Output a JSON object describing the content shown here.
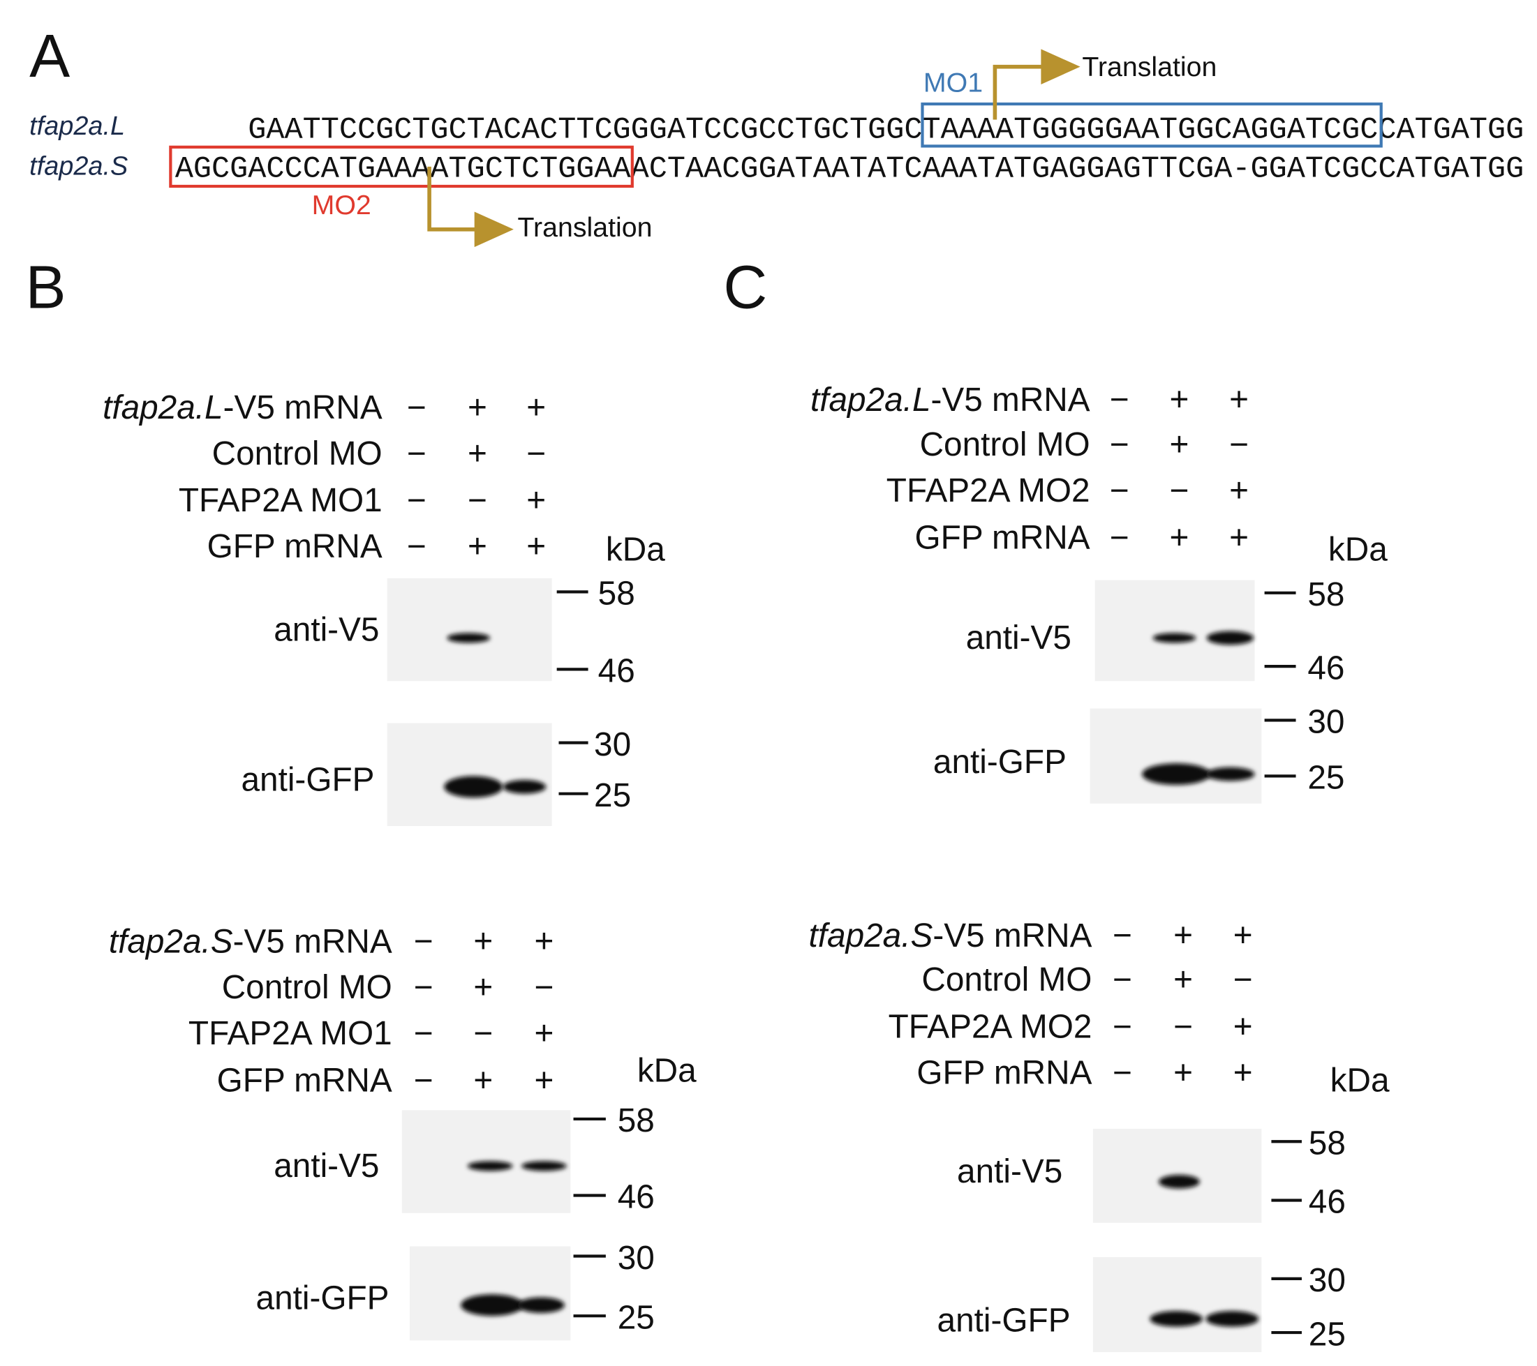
{
  "panel_a": {
    "label": "A",
    "genes": [
      "tfap2a.L",
      "tfap2a.S"
    ],
    "sequences": [
      [
        "GAATTCCGCTGCTACACTTCGGGATCCGCCTGCTGGC",
        "TAAAATGGGGGAATGGCAGGATCGC",
        "CATGATGG"
      ],
      [
        "AGCGACCCATGAAAATGCTCTGGAA",
        "ACTAACGGATAATATCAAATATGAGGAGTTCGA-GGATCGCCATGATGG"
      ]
    ],
    "morpholinos": [
      {
        "label": "MO1",
        "arrow_label": "Translation"
      },
      {
        "label": "MO2",
        "arrow_label": "Translation"
      }
    ]
  },
  "panel_b": {
    "label": "B"
  },
  "panel_c": {
    "label": "C"
  },
  "blots": [
    {
      "conditions": [
        {
          "label": [
            "tfap2a.L",
            "-V5 mRNA"
          ],
          "signs": [
            "−",
            "+",
            "+"
          ]
        },
        {
          "label": "Control MO",
          "signs": [
            "−",
            "+",
            "−"
          ]
        },
        {
          "label": "TFAP2A MO1",
          "signs": [
            "−",
            "−",
            "+"
          ]
        },
        {
          "label": "GFP mRNA",
          "signs": [
            "−",
            "+",
            "+"
          ]
        }
      ],
      "unit": "kDa",
      "strips": [
        {
          "antibody": "anti-V5",
          "markers": [
            58,
            46
          ]
        },
        {
          "antibody": "anti-GFP",
          "markers": [
            30,
            25
          ]
        }
      ]
    },
    {
      "conditions": [
        {
          "label": [
            "tfap2a.S",
            "-V5 mRNA"
          ],
          "signs": [
            "−",
            "+",
            "+"
          ]
        },
        {
          "label": "Control MO",
          "signs": [
            "−",
            "+",
            "−"
          ]
        },
        {
          "label": "TFAP2A MO1",
          "signs": [
            "−",
            "−",
            "+"
          ]
        },
        {
          "label": "GFP mRNA",
          "signs": [
            "−",
            "+",
            "+"
          ]
        }
      ],
      "unit": "kDa",
      "strips": [
        {
          "antibody": "anti-V5",
          "markers": [
            58,
            46
          ]
        },
        {
          "antibody": "anti-GFP",
          "markers": [
            30,
            25
          ]
        }
      ]
    },
    {
      "conditions": [
        {
          "label": [
            "tfap2a.L",
            "-V5 mRNA"
          ],
          "signs": [
            "−",
            "+",
            "+"
          ]
        },
        {
          "label": "Control MO",
          "signs": [
            "−",
            "+",
            "−"
          ]
        },
        {
          "label": "TFAP2A MO2",
          "signs": [
            "−",
            "−",
            "+"
          ]
        },
        {
          "label": "GFP mRNA",
          "signs": [
            "−",
            "+",
            "+"
          ]
        }
      ],
      "unit": "kDa",
      "strips": [
        {
          "antibody": "anti-V5",
          "markers": [
            58,
            46
          ]
        },
        {
          "antibody": "anti-GFP",
          "markers": [
            30,
            25
          ]
        }
      ]
    },
    {
      "conditions": [
        {
          "label": [
            "tfap2a.S",
            "-V5 mRNA"
          ],
          "signs": [
            "−",
            "+",
            "+"
          ]
        },
        {
          "label": "Control MO",
          "signs": [
            "−",
            "+",
            "−"
          ]
        },
        {
          "label": "TFAP2A MO2",
          "signs": [
            "−",
            "−",
            "+"
          ]
        },
        {
          "label": "GFP mRNA",
          "signs": [
            "−",
            "+",
            "+"
          ]
        }
      ],
      "unit": "kDa",
      "strips": [
        {
          "antibody": "anti-V5",
          "markers": [
            58,
            46
          ]
        },
        {
          "antibody": "anti-GFP",
          "markers": [
            30,
            25
          ]
        }
      ]
    }
  ]
}
